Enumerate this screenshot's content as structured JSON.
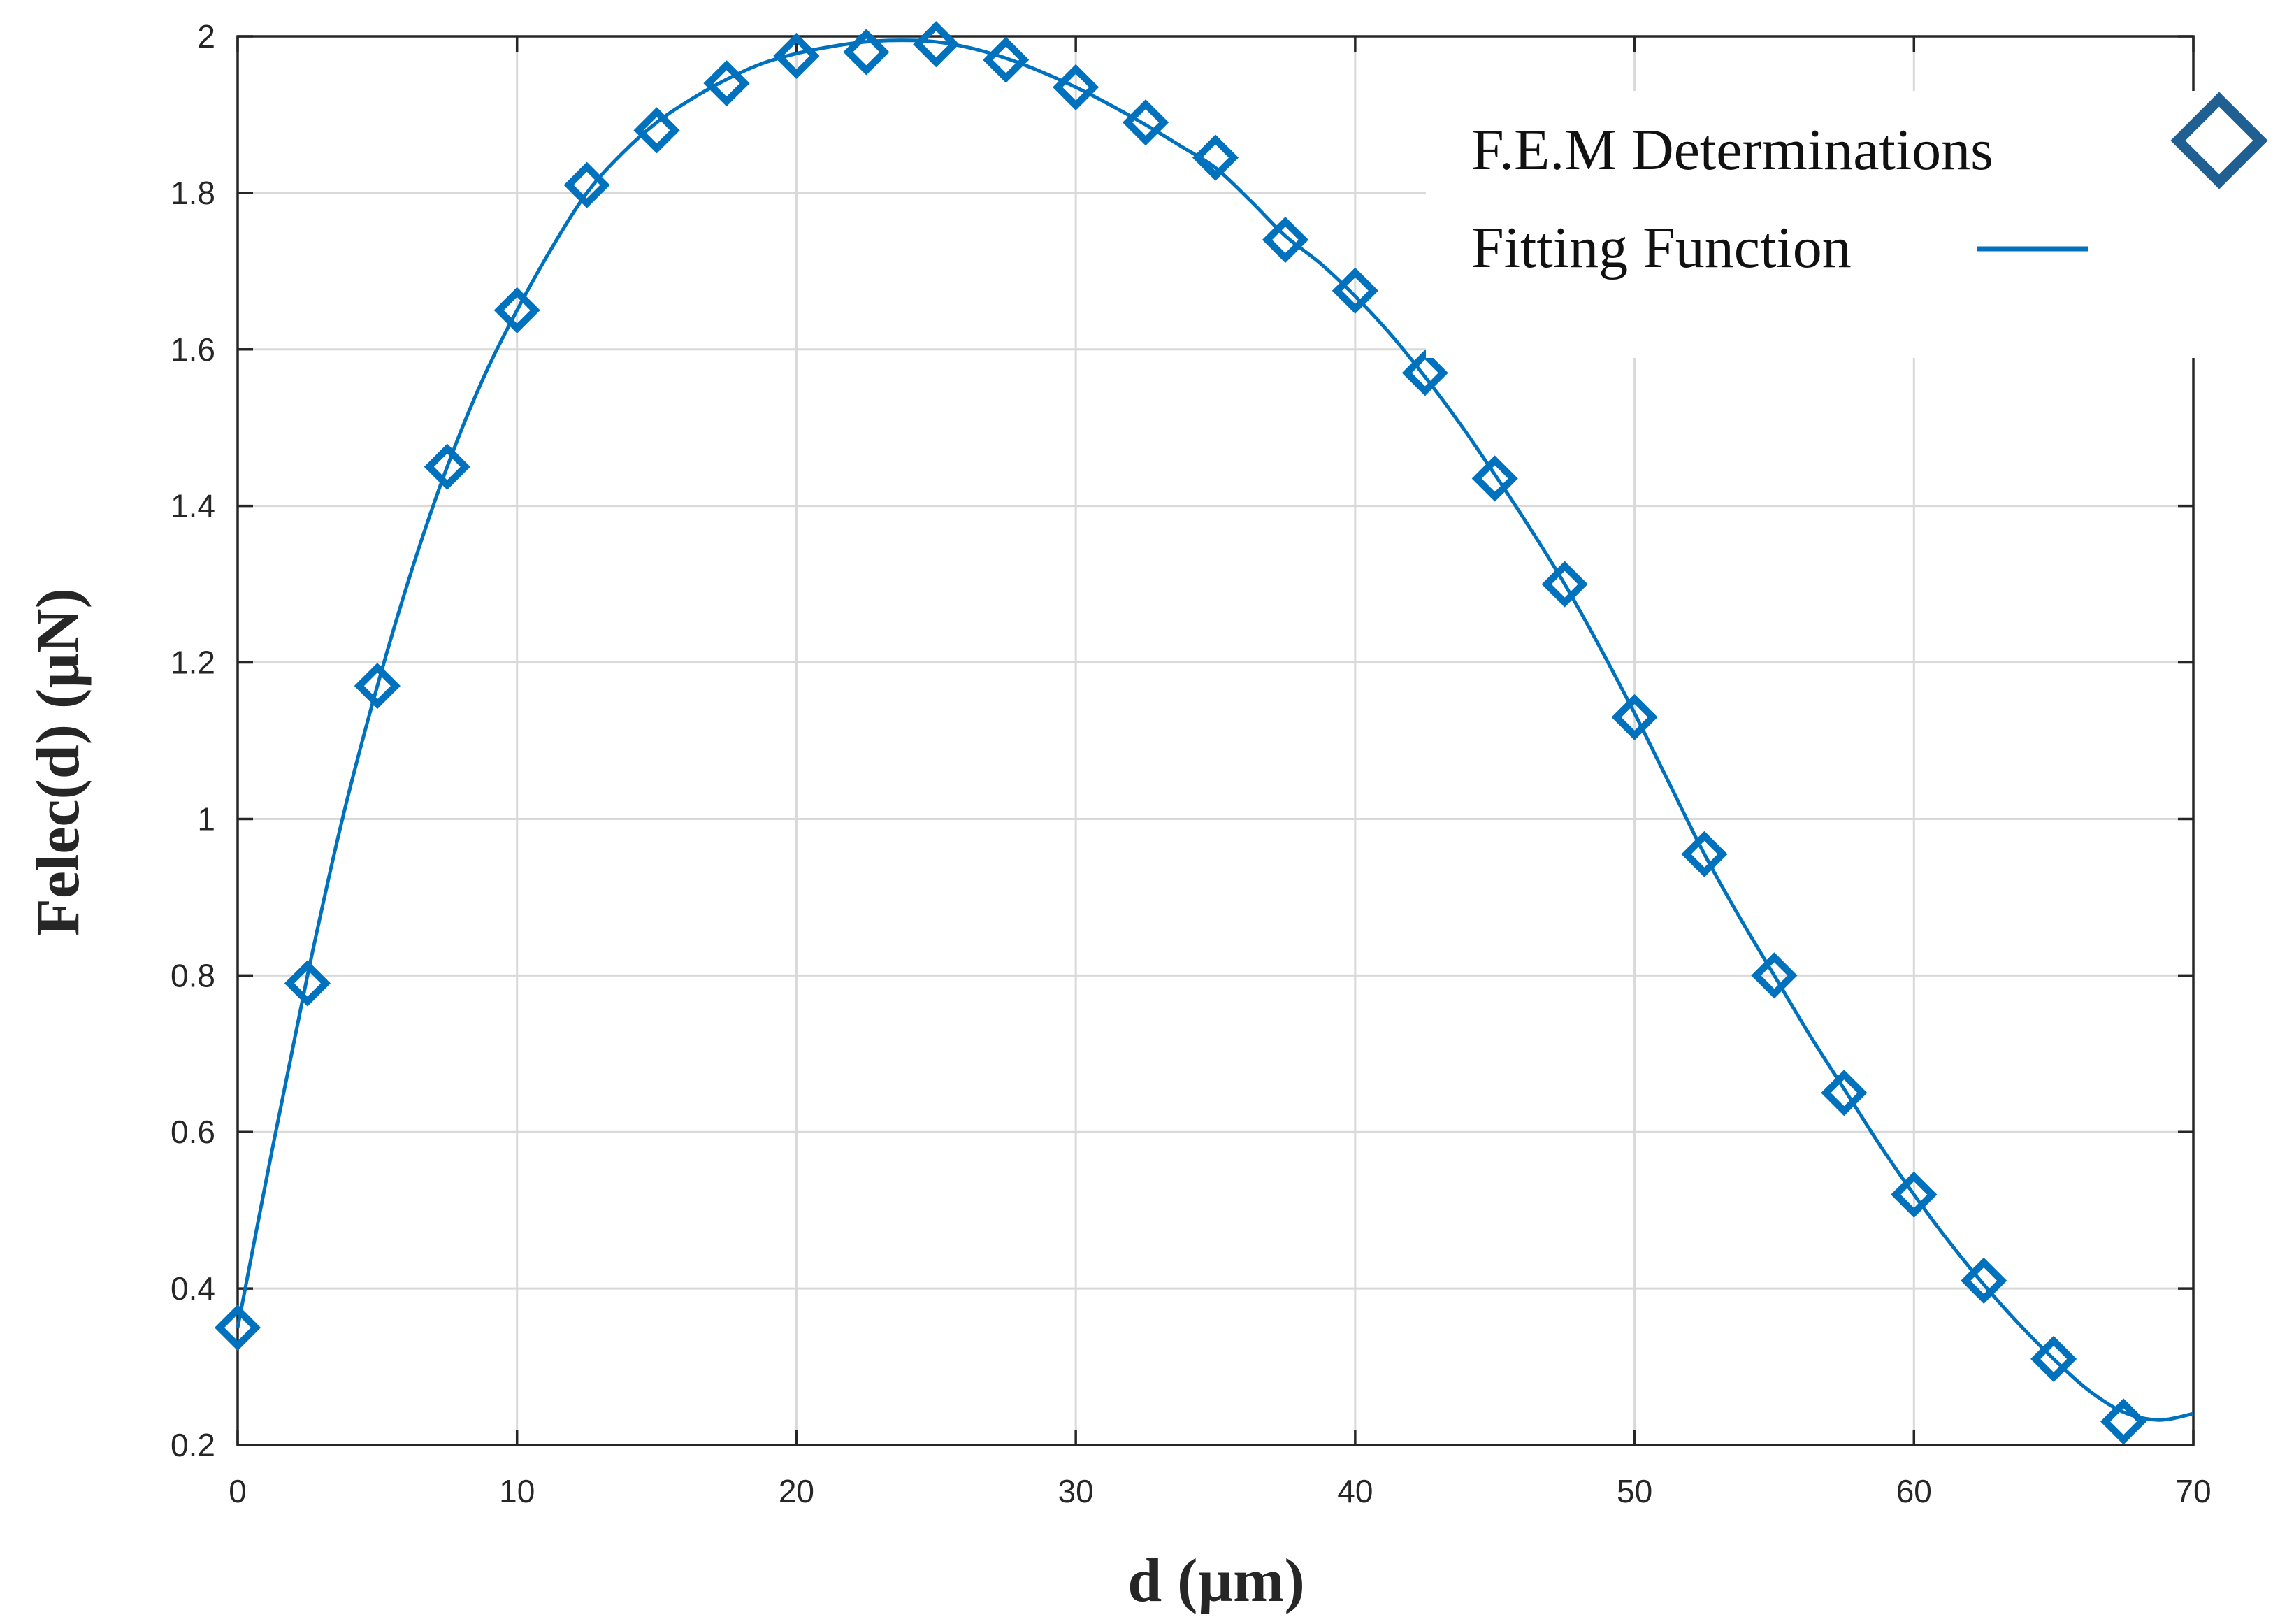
{
  "colors": {
    "series": "#0072bd",
    "legend_marker": "#1f5f91",
    "axis": "#262626",
    "grid": "#d9d9d9",
    "background": "#ffffff"
  },
  "chart_data": {
    "type": "scatter",
    "title": "",
    "xlabel": "d (µm)",
    "ylabel": "Felec(d) (µN)",
    "xlim": [
      0,
      70
    ],
    "ylim": [
      0.2,
      2
    ],
    "grid": true,
    "legend_position": "top-right",
    "x_ticks": [
      0,
      10,
      20,
      30,
      40,
      50,
      60,
      70
    ],
    "x_tick_labels": [
      "0",
      "10",
      "20",
      "30",
      "40",
      "50",
      "60",
      "70"
    ],
    "y_ticks": [
      0.2,
      0.4,
      0.6,
      0.8,
      1,
      1.2,
      1.4,
      1.6,
      1.8,
      2
    ],
    "y_tick_labels": [
      "0.2",
      "0.4",
      "0.6",
      "0.8",
      "1",
      "1.2",
      "1.4",
      "1.6",
      "1.8",
      "2"
    ],
    "series": [
      {
        "name": "F.E.M Determinations",
        "style": "diamond-markers",
        "x": [
          0,
          2.5,
          5,
          7.5,
          10,
          12.5,
          15,
          17.5,
          20,
          22.5,
          25,
          27.5,
          30,
          32.5,
          35,
          37.5,
          40,
          42.5,
          45,
          47.5,
          50,
          52.5,
          55,
          57.5,
          60,
          62.5,
          65,
          67.5
        ],
        "y": [
          0.35,
          0.79,
          1.17,
          1.45,
          1.65,
          1.81,
          1.88,
          1.94,
          1.975,
          1.98,
          1.99,
          1.97,
          1.935,
          1.89,
          1.845,
          1.74,
          1.675,
          1.57,
          1.435,
          1.3,
          1.13,
          0.955,
          0.8,
          0.65,
          0.52,
          0.41,
          0.31,
          0.23
        ]
      },
      {
        "name": "Fitting Function",
        "style": "line",
        "x": [
          0,
          1.25,
          2.5,
          3.75,
          5,
          6.25,
          7.5,
          8.75,
          10,
          11.25,
          12.5,
          13.75,
          15,
          16.25,
          17.5,
          18.75,
          20,
          21.25,
          22.5,
          23.75,
          25,
          26.25,
          27.5,
          28.75,
          30,
          31.25,
          32.5,
          33.75,
          35,
          36.25,
          37.5,
          38.75,
          40,
          41.25,
          42.5,
          43.75,
          45,
          46.25,
          47.5,
          48.75,
          50,
          51.25,
          52.5,
          53.75,
          55,
          56.25,
          57.5,
          58.75,
          60,
          61.25,
          62.5,
          63.75,
          65,
          66.25,
          67.5,
          68.75,
          70
        ],
        "y": [
          0.35,
          0.58,
          0.8,
          1.0,
          1.17,
          1.32,
          1.45,
          1.56,
          1.65,
          1.73,
          1.8,
          1.85,
          1.89,
          1.92,
          1.945,
          1.965,
          1.978,
          1.987,
          1.993,
          1.995,
          1.993,
          1.985,
          1.972,
          1.955,
          1.935,
          1.912,
          1.887,
          1.86,
          1.832,
          1.79,
          1.745,
          1.71,
          1.668,
          1.62,
          1.565,
          1.505,
          1.44,
          1.372,
          1.3,
          1.22,
          1.135,
          1.045,
          0.955,
          0.875,
          0.8,
          0.725,
          0.655,
          0.585,
          0.52,
          0.46,
          0.405,
          0.355,
          0.31,
          0.27,
          0.242,
          0.232,
          0.24
        ]
      }
    ]
  }
}
